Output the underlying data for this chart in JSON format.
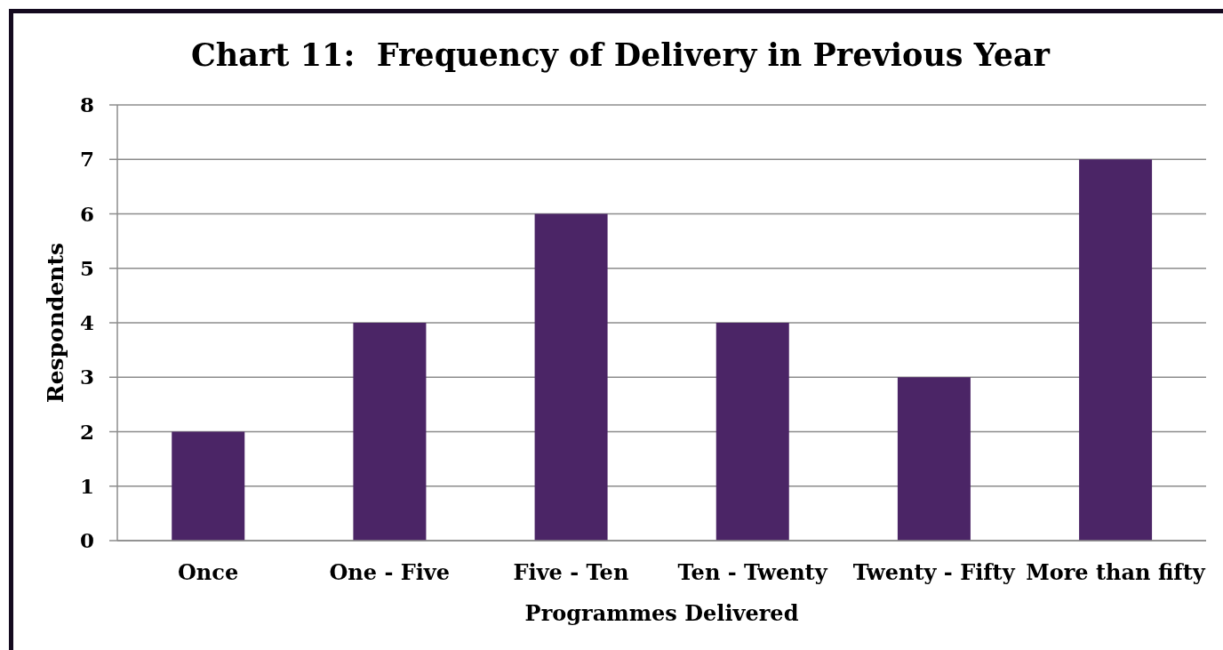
{
  "chart_data": {
    "type": "bar",
    "title": "Chart 11:  Frequency of Delivery in Previous Year",
    "xlabel": "Programmes Delivered",
    "ylabel": "Respondents",
    "categories": [
      "Once",
      "One - Five",
      "Five - Ten",
      "Ten - Twenty",
      "Twenty - Fifty",
      "More than fifty"
    ],
    "values": [
      2,
      4,
      6,
      4,
      3,
      7
    ],
    "color": "#4b2566",
    "ylim": [
      0,
      8
    ],
    "yticks": [
      0,
      1,
      2,
      3,
      4,
      5,
      6,
      7,
      8
    ],
    "grid": "y"
  }
}
